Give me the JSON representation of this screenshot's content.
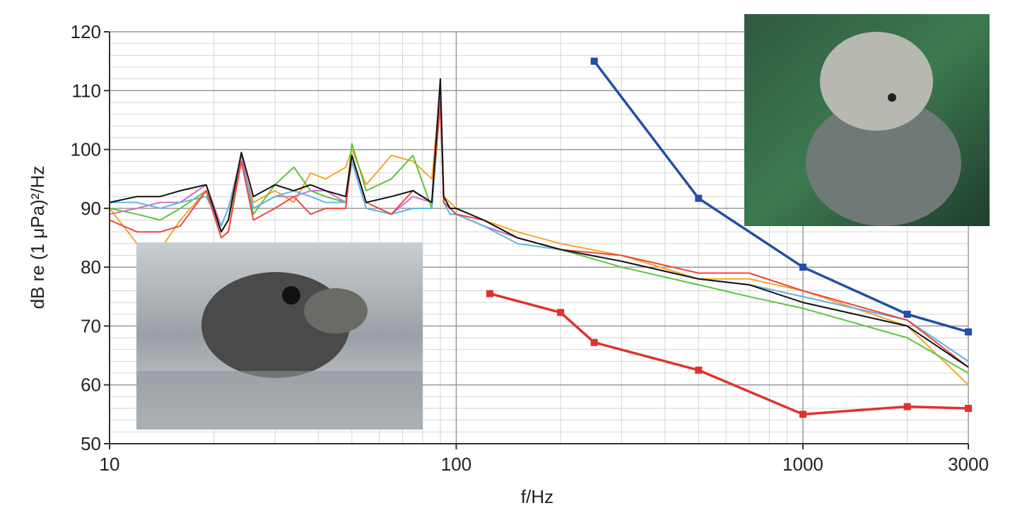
{
  "chart_data": {
    "type": "line",
    "x_axis_label": "f/Hz",
    "y_axis_label": "dB re (1 μPa)²/Hz",
    "xscale": "log",
    "xlim": [
      10,
      3000
    ],
    "xticks": [
      10,
      100,
      1000,
      3000
    ],
    "x_minor_ticks": [
      20,
      30,
      40,
      50,
      60,
      70,
      80,
      90,
      200,
      300,
      400,
      500,
      600,
      700,
      800,
      900,
      2000
    ],
    "ylim": [
      50,
      120
    ],
    "yticks": [
      50,
      60,
      70,
      80,
      90,
      100,
      110,
      120
    ],
    "y_minor_ticks": [
      52,
      54,
      56,
      58,
      62,
      64,
      66,
      68,
      72,
      74,
      76,
      78,
      82,
      84,
      86,
      88,
      92,
      94,
      96,
      98,
      102,
      104,
      106,
      108,
      112,
      114,
      116,
      118
    ],
    "grid": true,
    "x": [
      10,
      12,
      14,
      16,
      19,
      21,
      22,
      24,
      26,
      30,
      34,
      38,
      42,
      48,
      50,
      55,
      65,
      75,
      85,
      90,
      92,
      96,
      100,
      120,
      150,
      200,
      300,
      500,
      700,
      1000,
      2000,
      3000
    ],
    "series": [
      {
        "color": "#f5a623",
        "values": [
          90,
          84,
          83,
          88,
          93,
          85,
          86,
          98,
          91,
          93,
          91,
          96,
          95,
          97,
          100,
          94,
          99,
          98,
          95,
          110,
          92,
          91,
          90,
          88,
          86,
          84,
          82,
          78,
          78,
          76,
          70,
          60
        ]
      },
      {
        "color": "#5cc43a",
        "values": [
          90,
          89,
          88,
          90,
          93,
          86,
          88,
          98,
          89,
          94,
          97,
          93,
          92,
          91,
          101,
          93,
          95,
          99,
          90,
          108,
          91,
          90,
          89,
          87,
          85,
          83,
          80,
          77,
          75,
          73,
          68,
          62
        ]
      },
      {
        "color": "#d070c8",
        "values": [
          89,
          90,
          91,
          91,
          94,
          87,
          90,
          99,
          90,
          92,
          92,
          93,
          93,
          91,
          98,
          90,
          89,
          92,
          91,
          109,
          91,
          89,
          89,
          87,
          85,
          83,
          81,
          78,
          77,
          75,
          71,
          64
        ]
      },
      {
        "color": "#5ab8e6",
        "values": [
          91,
          91,
          90,
          91,
          92,
          87,
          90,
          98,
          90,
          92,
          93,
          92,
          91,
          91,
          98,
          90,
          89,
          90,
          90,
          108,
          91,
          89,
          89,
          87,
          84,
          83,
          81,
          78,
          77,
          75,
          71,
          64
        ]
      },
      {
        "color": "#f0463c",
        "values": [
          88,
          86,
          86,
          87,
          93,
          85,
          86,
          98,
          88,
          90,
          92,
          89,
          90,
          90,
          99,
          91,
          89,
          93,
          91,
          108,
          91,
          90,
          89,
          88,
          85,
          83,
          82,
          79,
          79,
          76,
          71,
          63
        ]
      },
      {
        "color": "#111111",
        "values": [
          91,
          92,
          92,
          93,
          94,
          86,
          88,
          99.5,
          92,
          94,
          93,
          94,
          93,
          92,
          99,
          91,
          92,
          93,
          91,
          112,
          92,
          90,
          90,
          88,
          85,
          83,
          81,
          78,
          77,
          74,
          70,
          63
        ]
      }
    ],
    "audiograms": [
      {
        "color": "#1f4fa8",
        "x": [
          250,
          500,
          1000,
          2000,
          3000
        ],
        "values": [
          115,
          91.7,
          80,
          72,
          69
        ]
      },
      {
        "color": "#e0322a",
        "x": [
          125,
          200,
          250,
          500,
          1000,
          2000,
          3000
        ],
        "values": [
          75.5,
          72.3,
          67.2,
          62.5,
          55,
          56.3,
          56
        ]
      }
    ]
  }
}
